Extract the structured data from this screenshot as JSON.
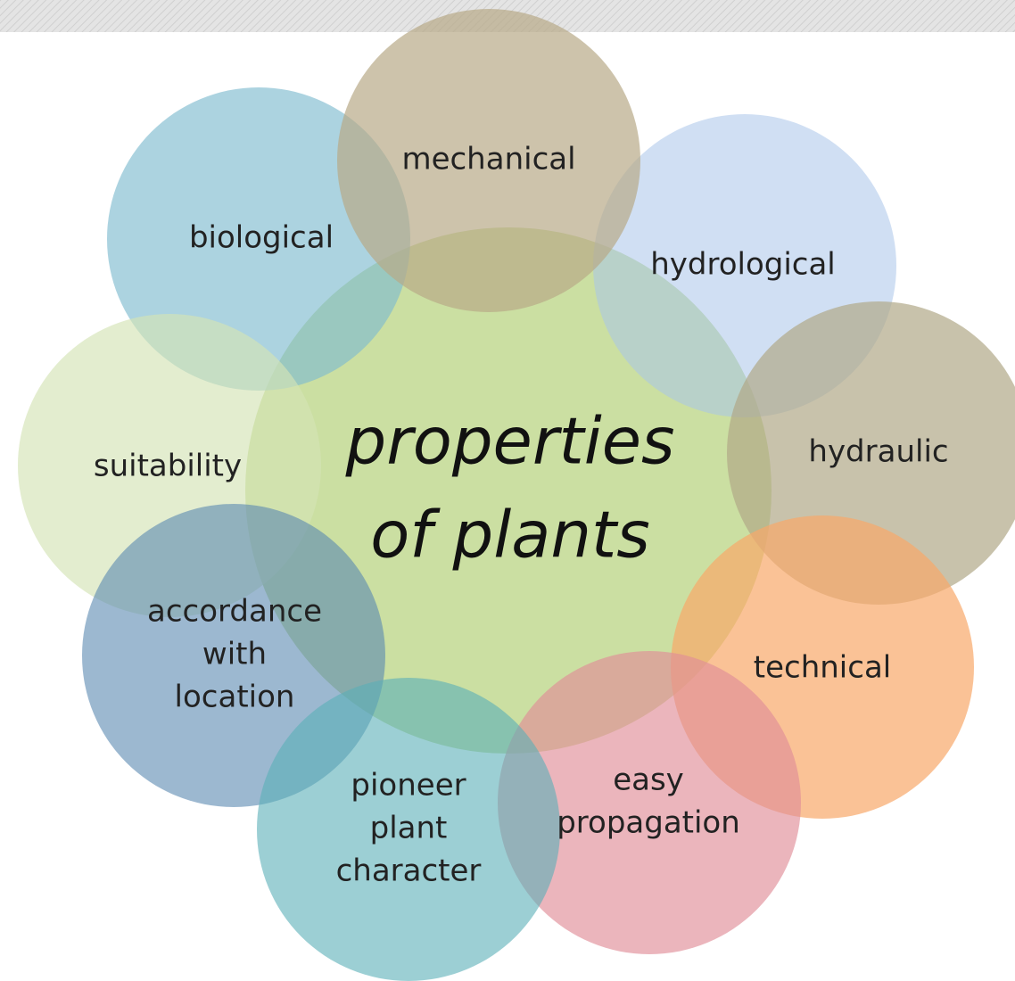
{
  "center": {
    "lines": [
      "properties",
      "of plants"
    ]
  },
  "nodes": [
    {
      "lines": [
        "mechanical"
      ]
    },
    {
      "lines": [
        "biological"
      ]
    },
    {
      "lines": [
        "hydrological"
      ]
    },
    {
      "lines": [
        "suitability"
      ]
    },
    {
      "lines": [
        "hydraulic"
      ]
    },
    {
      "lines": [
        "accordance",
        "with",
        "location"
      ]
    },
    {
      "lines": [
        "technical"
      ]
    },
    {
      "lines": [
        "pioneer",
        "plant",
        "character"
      ]
    },
    {
      "lines": [
        "easy",
        "propagation"
      ]
    }
  ]
}
